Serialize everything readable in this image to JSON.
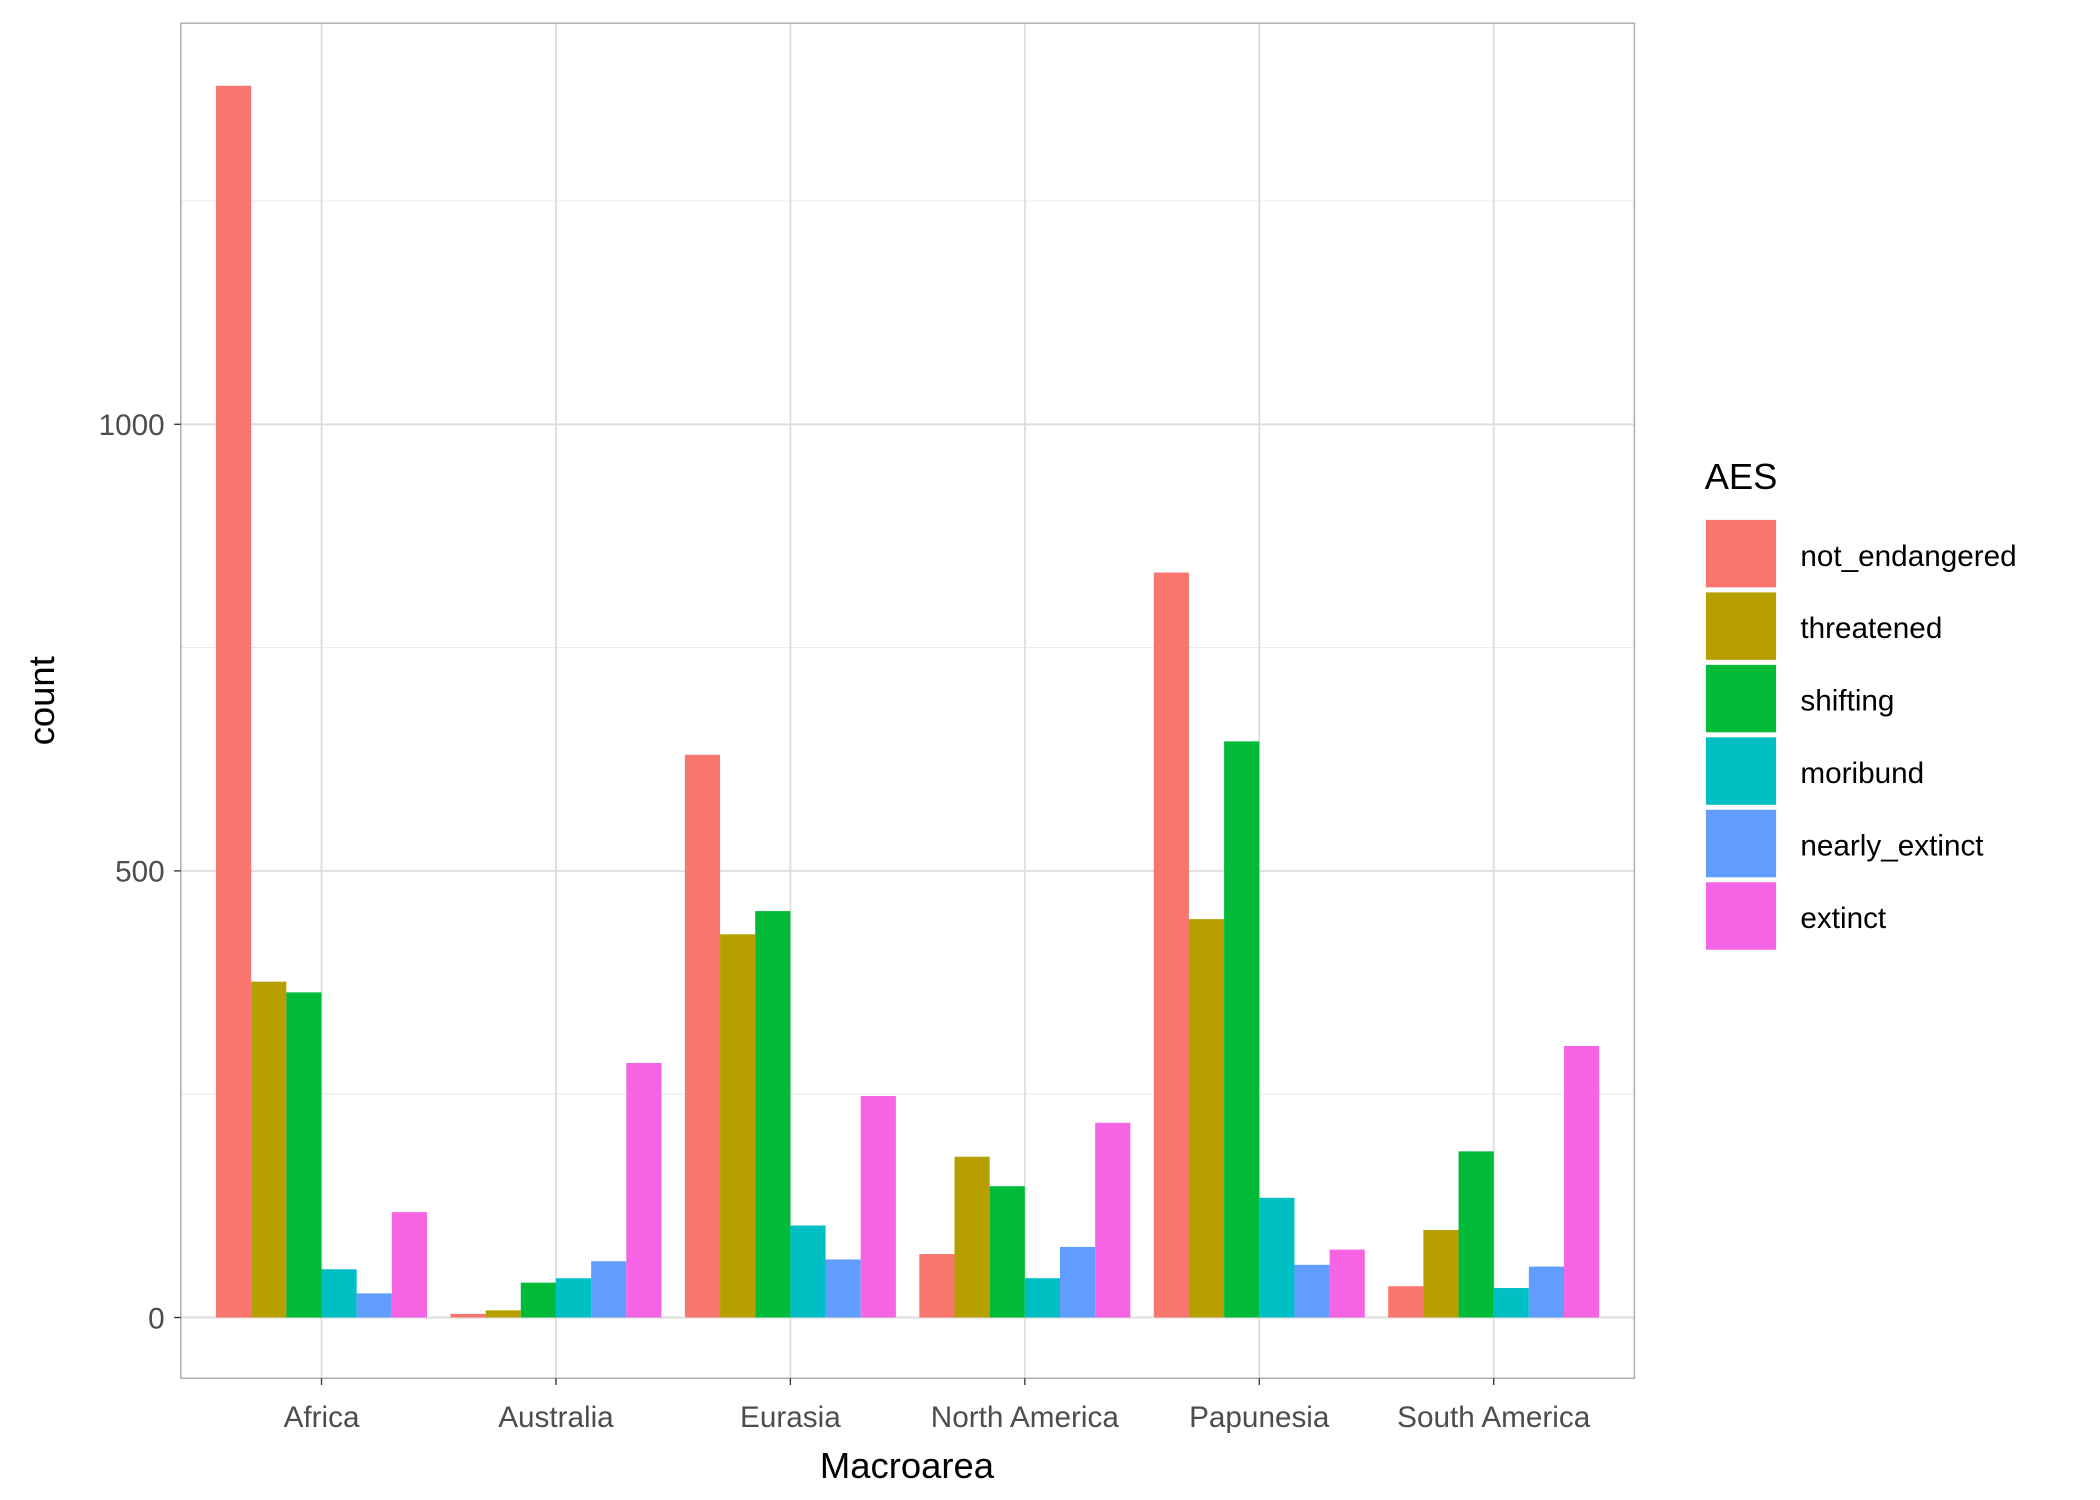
{
  "chart_data": {
    "type": "bar",
    "title": "",
    "xlabel": "Macroarea",
    "ylabel": "count",
    "categories": [
      "Africa",
      "Australia",
      "Eurasia",
      "North America",
      "Papunesia",
      "South America"
    ],
    "series": [
      {
        "name": "not_endangered",
        "color": "#F8766D",
        "values": [
          1379,
          4,
          630,
          71,
          834,
          35
        ]
      },
      {
        "name": "threatened",
        "color": "#B79F00",
        "values": [
          376,
          8,
          429,
          180,
          446,
          98
        ]
      },
      {
        "name": "shifting",
        "color": "#00BA38",
        "values": [
          364,
          39,
          455,
          147,
          645,
          186
        ]
      },
      {
        "name": "moribund",
        "color": "#00BFC4",
        "values": [
          54,
          44,
          103,
          44,
          134,
          33
        ]
      },
      {
        "name": "nearly_extinct",
        "color": "#619CFF",
        "values": [
          27,
          63,
          65,
          79,
          59,
          57
        ]
      },
      {
        "name": "extinct",
        "color": "#F564E3",
        "values": [
          118,
          285,
          248,
          218,
          76,
          304
        ]
      }
    ],
    "ylim": [
      -68,
      1449
    ],
    "yticks": [
      0,
      500,
      1000
    ],
    "ytick_labels": [
      "0",
      "500",
      "1000"
    ],
    "grid": true,
    "legend": {
      "title": "AES",
      "placement": "right"
    }
  }
}
